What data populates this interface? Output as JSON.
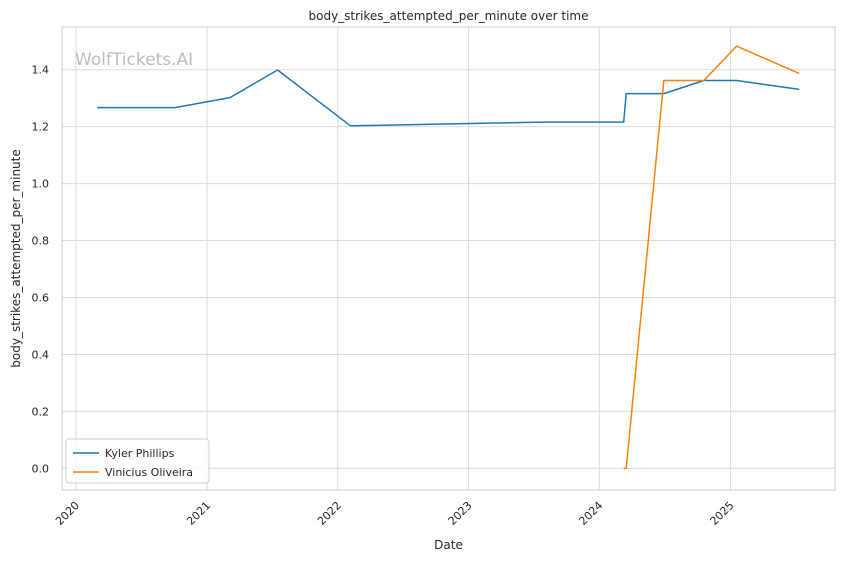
{
  "chart_data": {
    "type": "line",
    "title": "body_strikes_attempted_per_minute over time",
    "xlabel": "Date",
    "ylabel": "body_strikes_attempted_per_minute",
    "watermark": "WolfTickets.AI",
    "x_ticks": [
      "2020",
      "2021",
      "2022",
      "2023",
      "2024",
      "2025"
    ],
    "y_ticks": [
      "0.0",
      "0.2",
      "0.4",
      "0.6",
      "0.8",
      "1.0",
      "1.2",
      "1.4"
    ],
    "xlim": [
      "2019-11-23",
      "2025-10-20"
    ],
    "ylim": [
      -0.076,
      1.55
    ],
    "grid": true,
    "legend_position": "lower-left",
    "series": [
      {
        "name": "Kyler Phillips",
        "color": "#1f77b4",
        "points": [
          {
            "x": "2020-02-29",
            "y": 1.267
          },
          {
            "x": "2020-10-03",
            "y": 1.267
          },
          {
            "x": "2021-03-06",
            "y": 1.302
          },
          {
            "x": "2021-07-17",
            "y": 1.399
          },
          {
            "x": "2022-02-05",
            "y": 1.203
          },
          {
            "x": "2023-07-30",
            "y": 1.216
          },
          {
            "x": "2024-03-09",
            "y": 1.216
          },
          {
            "x": "2024-03-16",
            "y": 1.316
          },
          {
            "x": "2024-06-29",
            "y": 1.316
          },
          {
            "x": "2024-10-19",
            "y": 1.362
          },
          {
            "x": "2025-01-18",
            "y": 1.362
          },
          {
            "x": "2025-07-12",
            "y": 1.331
          }
        ]
      },
      {
        "name": "Vinicius Oliveira",
        "color": "#ff7f0e",
        "points": [
          {
            "x": "2024-03-09",
            "y": 0.0
          },
          {
            "x": "2024-03-16",
            "y": 0.0
          },
          {
            "x": "2024-06-29",
            "y": 1.362
          },
          {
            "x": "2024-10-19",
            "y": 1.362
          },
          {
            "x": "2025-01-18",
            "y": 1.483
          },
          {
            "x": "2025-07-12",
            "y": 1.387
          }
        ]
      }
    ]
  }
}
